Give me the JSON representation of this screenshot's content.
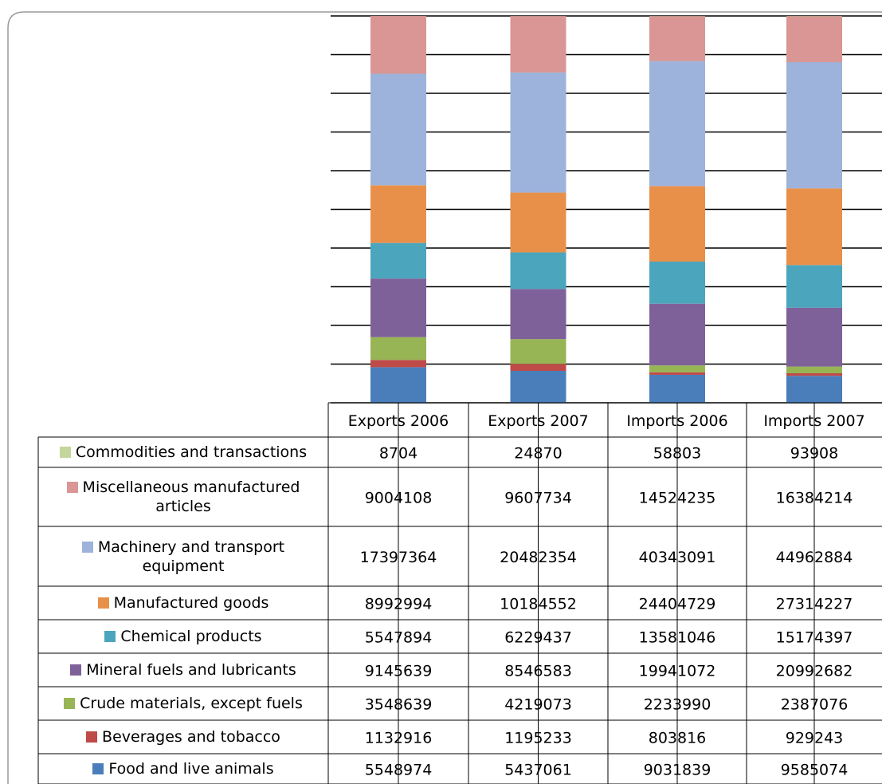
{
  "chart_data": {
    "type": "bar",
    "stacking": "percent",
    "categories": [
      "Exports 2006",
      "Exports 2007",
      "Imports 2006",
      "Imports 2007"
    ],
    "ylim": [
      0,
      100
    ],
    "yticks": [
      0,
      10,
      20,
      30,
      40,
      50,
      60,
      70,
      80,
      90,
      100
    ],
    "grid": true,
    "series": [
      {
        "name": "Commodities and transactions",
        "color": "#c3d69b",
        "values": [
          8704,
          24870,
          58803,
          93908
        ]
      },
      {
        "name": "Miscellaneous manufactured articles",
        "color": "#d99694",
        "values": [
          9004108,
          9607734,
          14524235,
          16384214
        ]
      },
      {
        "name": "Machinery and transport equipment",
        "color": "#9db3db",
        "values": [
          17397364,
          20482354,
          40343091,
          44962884
        ]
      },
      {
        "name": "Manufactured goods",
        "color": "#e8904a",
        "values": [
          8992994,
          10184552,
          24404729,
          27314227
        ]
      },
      {
        "name": "Chemical products",
        "color": "#4ba5bd",
        "values": [
          5547894,
          6229437,
          13581046,
          15174397
        ]
      },
      {
        "name": "Mineral fuels and lubricants",
        "color": "#7f6199",
        "values": [
          9145639,
          8546583,
          19941072,
          20992682
        ]
      },
      {
        "name": "Crude materials, except fuels",
        "color": "#98b556",
        "values": [
          3548639,
          4219073,
          2233990,
          2387076
        ]
      },
      {
        "name": "Beverages and tobacco",
        "color": "#be4b48",
        "values": [
          1132916,
          1195233,
          803816,
          929243
        ]
      },
      {
        "name": "Food and live animals",
        "color": "#4a7ebb",
        "values": [
          5548974,
          5437061,
          9031839,
          9585074
        ]
      }
    ]
  }
}
